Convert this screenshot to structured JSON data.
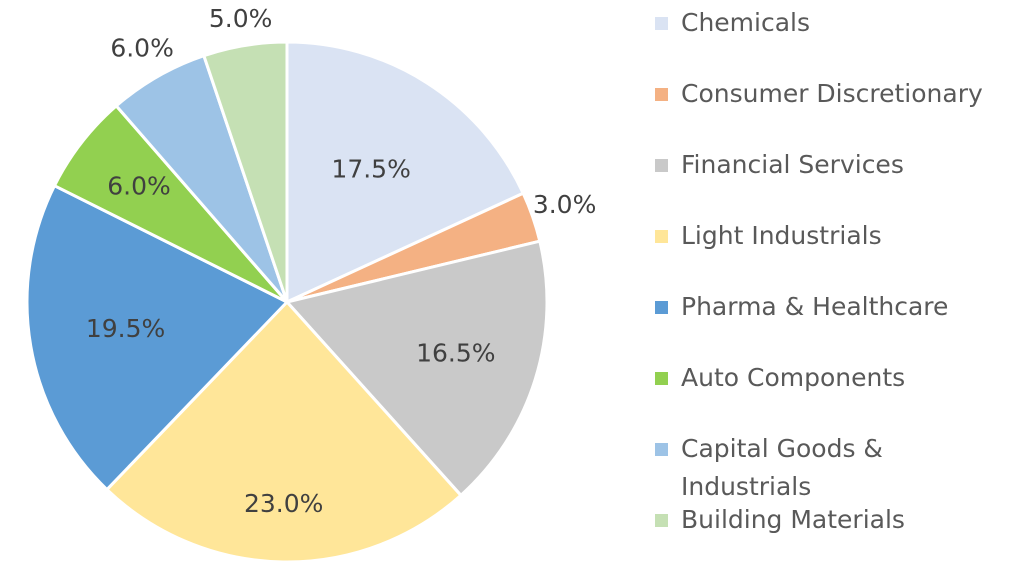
{
  "chart_data": {
    "type": "pie",
    "categories": [
      "Chemicals",
      "Consumer Discretionary",
      "Financial Services",
      "Light Industrials",
      "Pharma & Healthcare",
      "Auto Components",
      "Capital Goods & Industrials",
      "Building Materials"
    ],
    "values": [
      17.5,
      3.0,
      16.5,
      23.0,
      19.5,
      6.0,
      6.0,
      5.0
    ],
    "value_labels": [
      "17.5%",
      "3.0%",
      "16.5%",
      "23.0%",
      "19.5%",
      "6.0%",
      "6.0%",
      "5.0%"
    ],
    "colors": [
      "#dae3f3",
      "#f4b183",
      "#c9c9c9",
      "#ffe699",
      "#5b9bd5",
      "#92d050",
      "#9dc3e6",
      "#c5e0b4"
    ],
    "legend": "right"
  }
}
